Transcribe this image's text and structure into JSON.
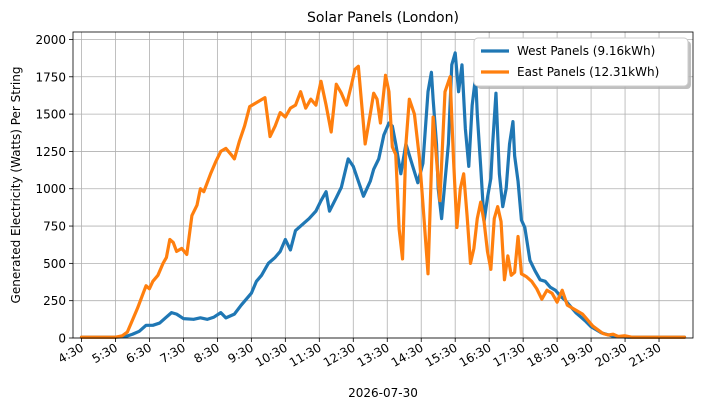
{
  "chart_data": {
    "type": "line",
    "title": "Solar Panels (London)",
    "xlabel": "2026-07-30",
    "ylabel": "Generated Electricity (Watts) Per String",
    "xlim": [
      4.25,
      22.5
    ],
    "ylim": [
      0,
      2050
    ],
    "grid": true,
    "legend_position": "upper right",
    "x_tick_values": [
      4.5,
      5.5,
      6.5,
      7.5,
      8.5,
      9.5,
      10.5,
      11.5,
      12.5,
      13.5,
      14.5,
      15.5,
      16.5,
      17.5,
      18.5,
      19.5,
      20.5,
      21.5
    ],
    "x_tick_labels": [
      "4:30",
      "5:30",
      "6:30",
      "7:30",
      "8:30",
      "9:30",
      "10:30",
      "11:30",
      "12:30",
      "13:30",
      "14:30",
      "15:30",
      "16:30",
      "17:30",
      "18:30",
      "19:30",
      "20:30",
      "21:30"
    ],
    "y_ticks": [
      0,
      250,
      500,
      750,
      1000,
      1250,
      1500,
      1750,
      2000
    ],
    "series": [
      {
        "name": "West Panels (9.16kWh)",
        "color": "#1f77b4",
        "points": [
          [
            4.5,
            5
          ],
          [
            5.0,
            5
          ],
          [
            5.5,
            5
          ],
          [
            5.8,
            10
          ],
          [
            6.0,
            25
          ],
          [
            6.2,
            45
          ],
          [
            6.4,
            85
          ],
          [
            6.6,
            85
          ],
          [
            6.8,
            100
          ],
          [
            7.0,
            140
          ],
          [
            7.15,
            170
          ],
          [
            7.3,
            160
          ],
          [
            7.5,
            130
          ],
          [
            7.8,
            125
          ],
          [
            8.0,
            135
          ],
          [
            8.2,
            125
          ],
          [
            8.4,
            140
          ],
          [
            8.6,
            170
          ],
          [
            8.75,
            135
          ],
          [
            9.0,
            160
          ],
          [
            9.2,
            220
          ],
          [
            9.35,
            260
          ],
          [
            9.5,
            300
          ],
          [
            9.65,
            380
          ],
          [
            9.8,
            420
          ],
          [
            10.0,
            500
          ],
          [
            10.2,
            540
          ],
          [
            10.35,
            580
          ],
          [
            10.5,
            660
          ],
          [
            10.65,
            590
          ],
          [
            10.8,
            720
          ],
          [
            11.0,
            760
          ],
          [
            11.2,
            800
          ],
          [
            11.4,
            850
          ],
          [
            11.55,
            920
          ],
          [
            11.7,
            980
          ],
          [
            11.8,
            850
          ],
          [
            12.0,
            940
          ],
          [
            12.15,
            1010
          ],
          [
            12.35,
            1200
          ],
          [
            12.5,
            1150
          ],
          [
            12.65,
            1050
          ],
          [
            12.8,
            950
          ],
          [
            13.0,
            1050
          ],
          [
            13.1,
            1130
          ],
          [
            13.25,
            1200
          ],
          [
            13.4,
            1360
          ],
          [
            13.55,
            1440
          ],
          [
            13.65,
            1420
          ],
          [
            13.75,
            1300
          ],
          [
            13.9,
            1100
          ],
          [
            14.05,
            1300
          ],
          [
            14.25,
            1150
          ],
          [
            14.4,
            1040
          ],
          [
            14.55,
            1170
          ],
          [
            14.7,
            1650
          ],
          [
            14.8,
            1780
          ],
          [
            14.85,
            1600
          ],
          [
            14.95,
            1300
          ],
          [
            15.0,
            1000
          ],
          [
            15.1,
            800
          ],
          [
            15.2,
            1050
          ],
          [
            15.3,
            1300
          ],
          [
            15.4,
            1830
          ],
          [
            15.5,
            1910
          ],
          [
            15.6,
            1650
          ],
          [
            15.7,
            1830
          ],
          [
            15.8,
            1400
          ],
          [
            15.9,
            1150
          ],
          [
            16.0,
            1560
          ],
          [
            16.1,
            1750
          ],
          [
            16.15,
            1500
          ],
          [
            16.25,
            1150
          ],
          [
            16.35,
            780
          ],
          [
            16.45,
            940
          ],
          [
            16.55,
            1070
          ],
          [
            16.6,
            1290
          ],
          [
            16.7,
            1640
          ],
          [
            16.8,
            1100
          ],
          [
            16.9,
            880
          ],
          [
            17.0,
            1000
          ],
          [
            17.1,
            1300
          ],
          [
            17.2,
            1450
          ],
          [
            17.25,
            1220
          ],
          [
            17.35,
            1050
          ],
          [
            17.45,
            790
          ],
          [
            17.55,
            740
          ],
          [
            17.7,
            520
          ],
          [
            17.85,
            450
          ],
          [
            18.0,
            390
          ],
          [
            18.15,
            380
          ],
          [
            18.3,
            340
          ],
          [
            18.45,
            320
          ],
          [
            18.6,
            280
          ],
          [
            18.75,
            250
          ],
          [
            18.9,
            210
          ],
          [
            19.05,
            170
          ],
          [
            19.2,
            140
          ],
          [
            19.35,
            110
          ],
          [
            19.5,
            75
          ],
          [
            19.65,
            55
          ],
          [
            19.8,
            35
          ],
          [
            19.95,
            25
          ],
          [
            20.1,
            15
          ],
          [
            20.3,
            10
          ],
          [
            20.6,
            5
          ],
          [
            21.0,
            5
          ],
          [
            21.5,
            5
          ],
          [
            22.25,
            5
          ]
        ]
      },
      {
        "name": "East Panels (12.31kWh)",
        "color": "#ff7f0e",
        "points": [
          [
            4.5,
            5
          ],
          [
            5.0,
            5
          ],
          [
            5.5,
            5
          ],
          [
            5.7,
            15
          ],
          [
            5.85,
            40
          ],
          [
            6.0,
            120
          ],
          [
            6.15,
            200
          ],
          [
            6.3,
            290
          ],
          [
            6.4,
            350
          ],
          [
            6.5,
            330
          ],
          [
            6.6,
            380
          ],
          [
            6.75,
            420
          ],
          [
            6.9,
            500
          ],
          [
            7.0,
            540
          ],
          [
            7.1,
            660
          ],
          [
            7.2,
            640
          ],
          [
            7.3,
            580
          ],
          [
            7.45,
            600
          ],
          [
            7.6,
            560
          ],
          [
            7.75,
            820
          ],
          [
            7.9,
            890
          ],
          [
            8.0,
            1000
          ],
          [
            8.1,
            980
          ],
          [
            8.2,
            1040
          ],
          [
            8.3,
            1100
          ],
          [
            8.45,
            1180
          ],
          [
            8.6,
            1250
          ],
          [
            8.75,
            1270
          ],
          [
            8.9,
            1230
          ],
          [
            9.0,
            1200
          ],
          [
            9.15,
            1320
          ],
          [
            9.3,
            1420
          ],
          [
            9.45,
            1550
          ],
          [
            9.6,
            1570
          ],
          [
            9.75,
            1590
          ],
          [
            9.9,
            1610
          ],
          [
            10.05,
            1350
          ],
          [
            10.2,
            1420
          ],
          [
            10.35,
            1510
          ],
          [
            10.5,
            1480
          ],
          [
            10.65,
            1540
          ],
          [
            10.8,
            1560
          ],
          [
            10.95,
            1650
          ],
          [
            11.1,
            1540
          ],
          [
            11.25,
            1600
          ],
          [
            11.4,
            1560
          ],
          [
            11.55,
            1720
          ],
          [
            11.7,
            1560
          ],
          [
            11.85,
            1380
          ],
          [
            12.0,
            1700
          ],
          [
            12.15,
            1640
          ],
          [
            12.3,
            1560
          ],
          [
            12.45,
            1700
          ],
          [
            12.55,
            1800
          ],
          [
            12.65,
            1820
          ],
          [
            12.75,
            1560
          ],
          [
            12.85,
            1300
          ],
          [
            13.0,
            1500
          ],
          [
            13.1,
            1640
          ],
          [
            13.2,
            1600
          ],
          [
            13.3,
            1440
          ],
          [
            13.45,
            1760
          ],
          [
            13.55,
            1650
          ],
          [
            13.65,
            1280
          ],
          [
            13.75,
            1230
          ],
          [
            13.85,
            730
          ],
          [
            13.95,
            530
          ],
          [
            14.05,
            1300
          ],
          [
            14.15,
            1600
          ],
          [
            14.3,
            1500
          ],
          [
            14.45,
            1200
          ],
          [
            14.55,
            900
          ],
          [
            14.7,
            430
          ],
          [
            14.85,
            1480
          ],
          [
            14.95,
            1200
          ],
          [
            15.05,
            920
          ],
          [
            15.2,
            1650
          ],
          [
            15.35,
            1750
          ],
          [
            15.45,
            1200
          ],
          [
            15.55,
            740
          ],
          [
            15.65,
            1000
          ],
          [
            15.75,
            1100
          ],
          [
            15.85,
            820
          ],
          [
            15.95,
            500
          ],
          [
            16.05,
            600
          ],
          [
            16.15,
            800
          ],
          [
            16.25,
            910
          ],
          [
            16.35,
            780
          ],
          [
            16.45,
            580
          ],
          [
            16.55,
            460
          ],
          [
            16.65,
            800
          ],
          [
            16.75,
            880
          ],
          [
            16.85,
            780
          ],
          [
            16.95,
            390
          ],
          [
            17.05,
            550
          ],
          [
            17.15,
            420
          ],
          [
            17.25,
            440
          ],
          [
            17.35,
            680
          ],
          [
            17.45,
            430
          ],
          [
            17.6,
            410
          ],
          [
            17.75,
            380
          ],
          [
            17.9,
            330
          ],
          [
            18.05,
            260
          ],
          [
            18.2,
            320
          ],
          [
            18.35,
            300
          ],
          [
            18.5,
            240
          ],
          [
            18.65,
            320
          ],
          [
            18.8,
            220
          ],
          [
            18.95,
            200
          ],
          [
            19.1,
            180
          ],
          [
            19.25,
            160
          ],
          [
            19.4,
            120
          ],
          [
            19.55,
            80
          ],
          [
            19.7,
            55
          ],
          [
            19.85,
            30
          ],
          [
            20.0,
            20
          ],
          [
            20.15,
            25
          ],
          [
            20.3,
            10
          ],
          [
            20.5,
            15
          ],
          [
            20.7,
            5
          ],
          [
            21.0,
            5
          ],
          [
            21.5,
            5
          ],
          [
            22.25,
            5
          ]
        ]
      }
    ]
  }
}
